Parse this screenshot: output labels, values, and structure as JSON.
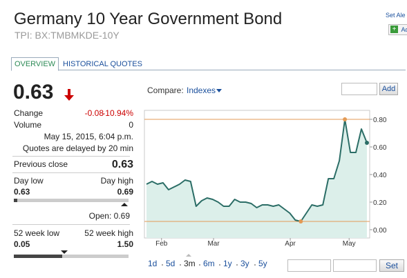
{
  "header": {
    "title": "Germany 10 Year Government Bond",
    "subtitle": "TPI: BX:TMBMKDE-10Y",
    "alert_link": "Set Ale",
    "add_button": "Ad"
  },
  "tabs": [
    "OVERVIEW",
    "HISTORICAL QUOTES"
  ],
  "quote": {
    "price": "0.63",
    "change_label": "Change",
    "change": "-0.08",
    "change_pct": "-10.94%",
    "volume_label": "Volume",
    "volume": "0",
    "timestamp": "May 15, 2015, 6:04 p.m.",
    "delay_note": "Quotes are delayed by 20 min",
    "previous_close_label": "Previous close",
    "previous_close": "0.63",
    "day_low_label": "Day low",
    "day_high_label": "Day high",
    "day_low": "0.63",
    "day_high": "0.69",
    "open": "Open: 0.69",
    "week52_low_label": "52 week low",
    "week52_high_label": "52 week high",
    "week52_low": "0.05",
    "week52_high": "1.50"
  },
  "compare": {
    "label": "Compare:",
    "selector": "Indexes",
    "add_button": "Add"
  },
  "ranges": [
    "1d",
    "5d",
    "3m",
    "6m",
    "1y",
    "3y",
    "5y"
  ],
  "set_button": "Set",
  "chart_data": {
    "type": "line",
    "color": "#2b6d66",
    "fill": "#dcefea",
    "values": [
      0.33,
      0.35,
      0.33,
      0.34,
      0.29,
      0.31,
      0.33,
      0.36,
      0.35,
      0.17,
      0.21,
      0.23,
      0.22,
      0.2,
      0.17,
      0.17,
      0.22,
      0.2,
      0.2,
      0.19,
      0.16,
      0.18,
      0.18,
      0.17,
      0.18,
      0.15,
      0.12,
      0.07,
      0.06,
      0.12,
      0.18,
      0.17,
      0.18,
      0.37,
      0.37,
      0.5,
      0.8,
      0.56,
      0.56,
      0.73,
      0.63
    ],
    "xlim": [
      0,
      40
    ],
    "xticks": [
      {
        "value": 2.73,
        "label": "Feb"
      },
      {
        "value": 12.17,
        "label": "Mar"
      },
      {
        "value": 26.09,
        "label": "Apr"
      },
      {
        "value": 36.77,
        "label": "May"
      }
    ],
    "ylim": [
      -0.06,
      0.865
    ],
    "yticks": [
      {
        "value": 0,
        "label": "0.00"
      },
      {
        "value": 0.2,
        "label": "0.20"
      },
      {
        "value": 0.4,
        "label": "0.40"
      },
      {
        "value": 0.6,
        "label": "0.60"
      },
      {
        "value": 0.8,
        "label": "0.80"
      }
    ],
    "reference_lines": [
      0.8,
      0.06
    ],
    "reference_color": "#e39a55"
  }
}
